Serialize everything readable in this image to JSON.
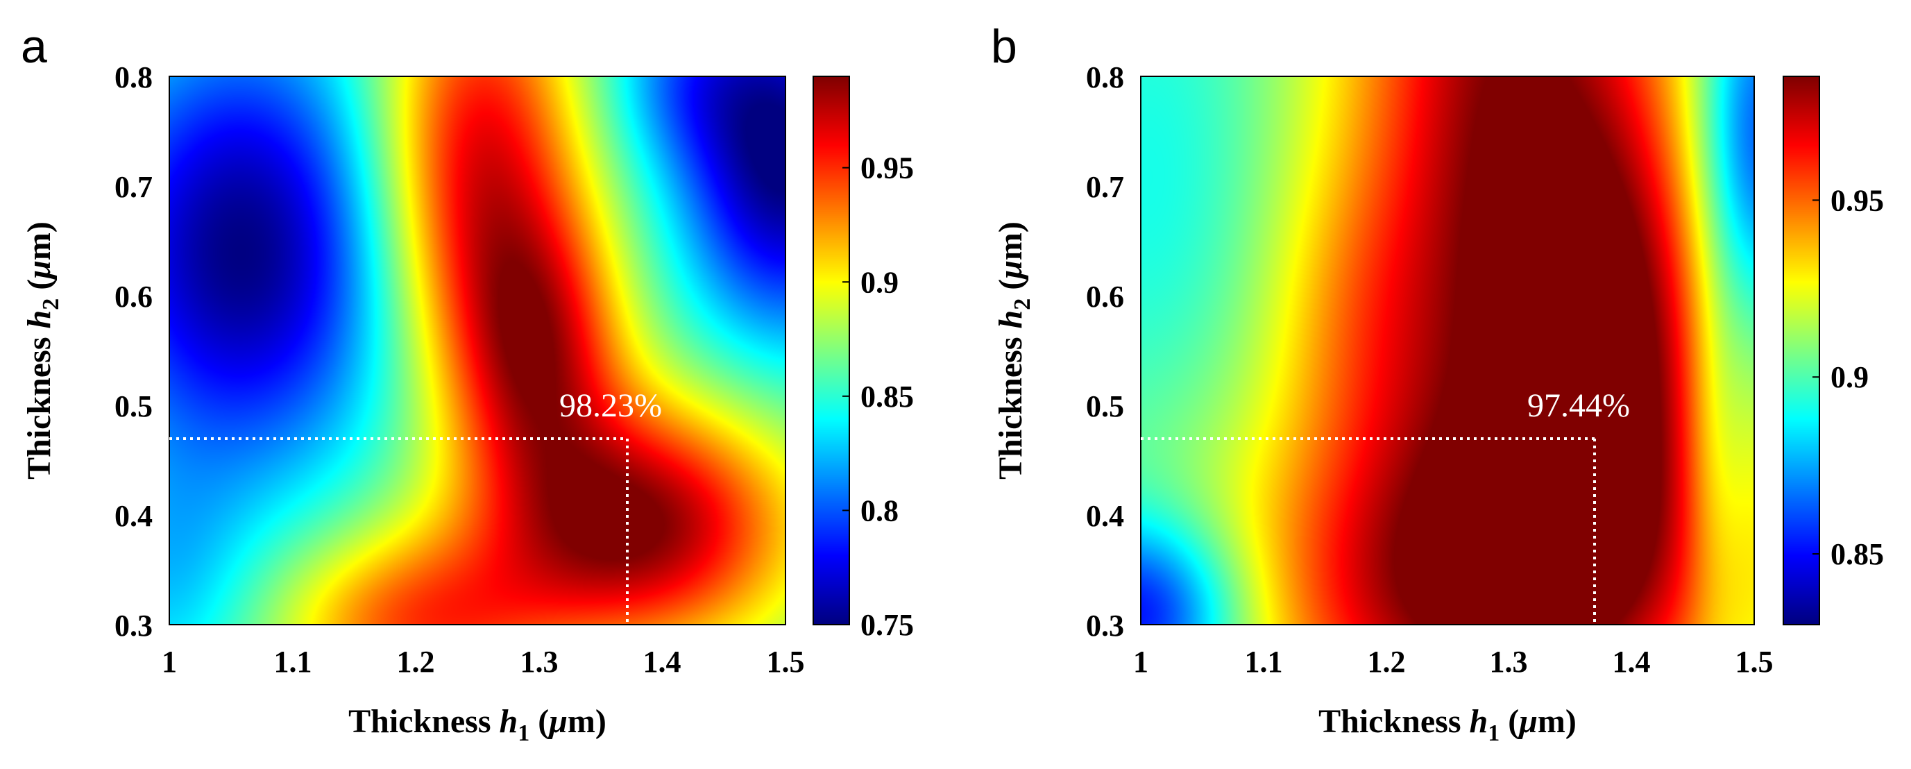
{
  "chart_data": [
    {
      "panel": "a",
      "type": "heatmap",
      "xlabel": {
        "prefix": "Thickness ",
        "var": "h",
        "sub": "1",
        "unit": " (",
        "mu": "μ",
        "m": "m)"
      },
      "ylabel": {
        "prefix": "Thickness ",
        "var": "h",
        "sub": "2",
        "unit": " (",
        "mu": "μ",
        "m": "m)"
      },
      "xlim": [
        1,
        1.5
      ],
      "ylim": [
        0.3,
        0.8
      ],
      "xticks": [
        "1",
        "1.1",
        "1.2",
        "1.3",
        "1.4",
        "1.5"
      ],
      "yticks": [
        "0.3",
        "0.4",
        "0.5",
        "0.6",
        "0.7",
        "0.8"
      ],
      "colorbar": {
        "min": 0.75,
        "max": 0.99,
        "ticks": [
          0.75,
          0.8,
          0.85,
          0.9,
          0.95
        ],
        "tick_labels": [
          "0.75",
          "0.8",
          "0.85",
          "0.9",
          "0.95"
        ]
      },
      "field": {
        "kind": "sum-of-gaussian-bumps",
        "base": 0.86,
        "bumps": [
          {
            "x": 1.06,
            "y": 0.64,
            "amp": -0.11,
            "sx": 0.09,
            "sy": 0.14
          },
          {
            "x": 1.5,
            "y": 0.72,
            "amp": -0.11,
            "sx": 0.06,
            "sy": 0.11
          },
          {
            "x": 1.42,
            "y": 0.8,
            "amp": -0.04,
            "sx": 0.05,
            "sy": 0.06
          },
          {
            "x": 1.0,
            "y": 0.34,
            "amp": -0.03,
            "sx": 0.05,
            "sy": 0.08
          },
          {
            "x": 1.38,
            "y": 0.39,
            "amp": 0.13,
            "sx": 0.09,
            "sy": 0.08
          },
          {
            "x": 1.25,
            "y": 0.72,
            "amp": 0.11,
            "sx": 0.06,
            "sy": 0.14
          },
          {
            "x": 1.3,
            "y": 0.55,
            "amp": 0.09,
            "sx": 0.05,
            "sy": 0.09
          },
          {
            "x": 1.2,
            "y": 0.3,
            "amp": 0.08,
            "sx": 0.08,
            "sy": 0.06
          }
        ]
      },
      "optimum": {
        "label": "98.23%",
        "x": 1.37,
        "y": 0.47
      }
    },
    {
      "panel": "b",
      "type": "heatmap",
      "xlabel": {
        "prefix": "Thickness ",
        "var": "h",
        "sub": "1",
        "unit": " (",
        "mu": "μ",
        "m": "m)"
      },
      "ylabel": {
        "prefix": "Thickness ",
        "var": "h",
        "sub": "2",
        "unit": " (",
        "mu": "μ",
        "m": "m)"
      },
      "xlim": [
        1,
        1.5
      ],
      "ylim": [
        0.3,
        0.8
      ],
      "xticks": [
        "1",
        "1.1",
        "1.2",
        "1.3",
        "1.4",
        "1.5"
      ],
      "yticks": [
        "0.3",
        "0.4",
        "0.5",
        "0.6",
        "0.7",
        "0.8"
      ],
      "colorbar": {
        "min": 0.83,
        "max": 0.985,
        "ticks": [
          0.85,
          0.9,
          0.95
        ],
        "tick_labels": [
          "0.85",
          "0.9",
          "0.95"
        ]
      },
      "field": {
        "kind": "sum-of-gaussian-bumps",
        "base": 0.9,
        "bumps": [
          {
            "x": 1.3,
            "y": 0.8,
            "amp": 0.08,
            "sx": 0.1,
            "sy": 0.3
          },
          {
            "x": 1.28,
            "y": 0.33,
            "amp": 0.075,
            "sx": 0.15,
            "sy": 0.12
          },
          {
            "x": 1.38,
            "y": 0.55,
            "amp": 0.06,
            "sx": 0.07,
            "sy": 0.15
          },
          {
            "x": 1.0,
            "y": 0.31,
            "amp": -0.06,
            "sx": 0.06,
            "sy": 0.06
          },
          {
            "x": 1.5,
            "y": 0.74,
            "amp": -0.05,
            "sx": 0.035,
            "sy": 0.12
          },
          {
            "x": 1.47,
            "y": 0.45,
            "amp": -0.02,
            "sx": 0.02,
            "sy": 0.12
          },
          {
            "x": 1.18,
            "y": 0.58,
            "amp": 0.02,
            "sx": 0.06,
            "sy": 0.1
          },
          {
            "x": 1.02,
            "y": 0.7,
            "amp": -0.01,
            "sx": 0.06,
            "sy": 0.15
          }
        ]
      },
      "optimum": {
        "label": "97.44%",
        "x": 1.37,
        "y": 0.47
      }
    }
  ]
}
